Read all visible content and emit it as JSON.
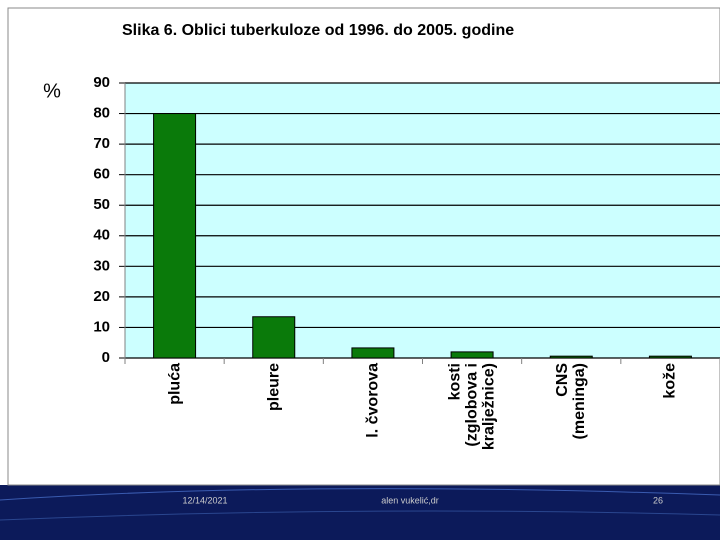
{
  "chart_data": {
    "type": "bar",
    "title": "Slika 6.  Oblici tuberkuloze od 1996. do 2005. godine",
    "y_label": "%",
    "categories": [
      "pluća",
      "pleure",
      "l. čvorova",
      "kosti (zglobova i kralježnice)",
      "CNS (meninga)",
      "kože"
    ],
    "values": [
      80,
      13.5,
      3.3,
      2,
      0.6,
      0.6
    ],
    "color": "#0a7a0a",
    "ylim": [
      0,
      90
    ],
    "yticks": [
      0,
      10,
      20,
      30,
      40,
      50,
      60,
      70,
      80,
      90
    ],
    "grid": true
  },
  "footer": {
    "date": "12/14/2021",
    "author": "alen vukelić,dr",
    "page": "26"
  }
}
